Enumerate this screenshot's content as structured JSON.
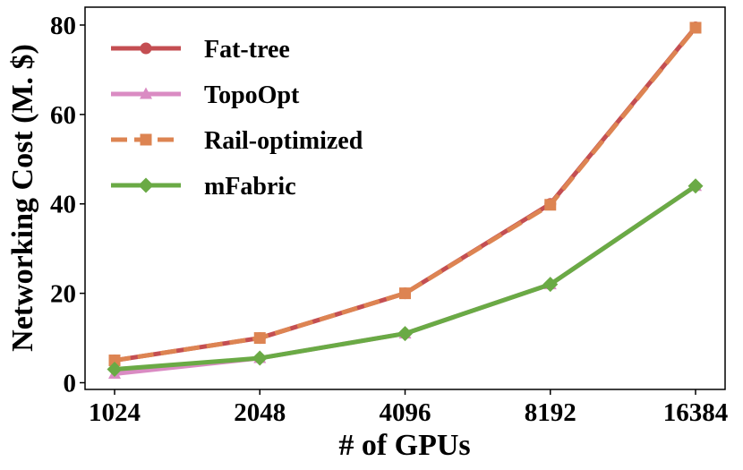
{
  "chart_data": {
    "type": "line",
    "title": "",
    "xlabel": "# of GPUs",
    "ylabel": "Networking Cost (M. $)",
    "categories": [
      "1024",
      "2048",
      "4096",
      "8192",
      "16384"
    ],
    "ylim": [
      -1.5,
      84
    ],
    "yticks": [
      0,
      20,
      40,
      60,
      80
    ],
    "grid": false,
    "legend_position": "top-left",
    "series": [
      {
        "name": "Fat-tree",
        "values": [
          5,
          10,
          20,
          40,
          79.5
        ],
        "color": "#c44e52",
        "marker": "circle",
        "dash": "solid"
      },
      {
        "name": "TopoOpt",
        "values": [
          2,
          5.5,
          11,
          22,
          44
        ],
        "color": "#da8bc3",
        "marker": "triangle",
        "dash": "solid"
      },
      {
        "name": "Rail-optimized",
        "values": [
          5,
          10,
          20,
          39.8,
          79.4
        ],
        "color": "#dd8452",
        "marker": "square",
        "dash": "dashed"
      },
      {
        "name": "mFabric",
        "values": [
          3,
          5.5,
          11,
          22,
          44
        ],
        "color": "#6aaa45",
        "marker": "diamond",
        "dash": "solid"
      }
    ]
  }
}
